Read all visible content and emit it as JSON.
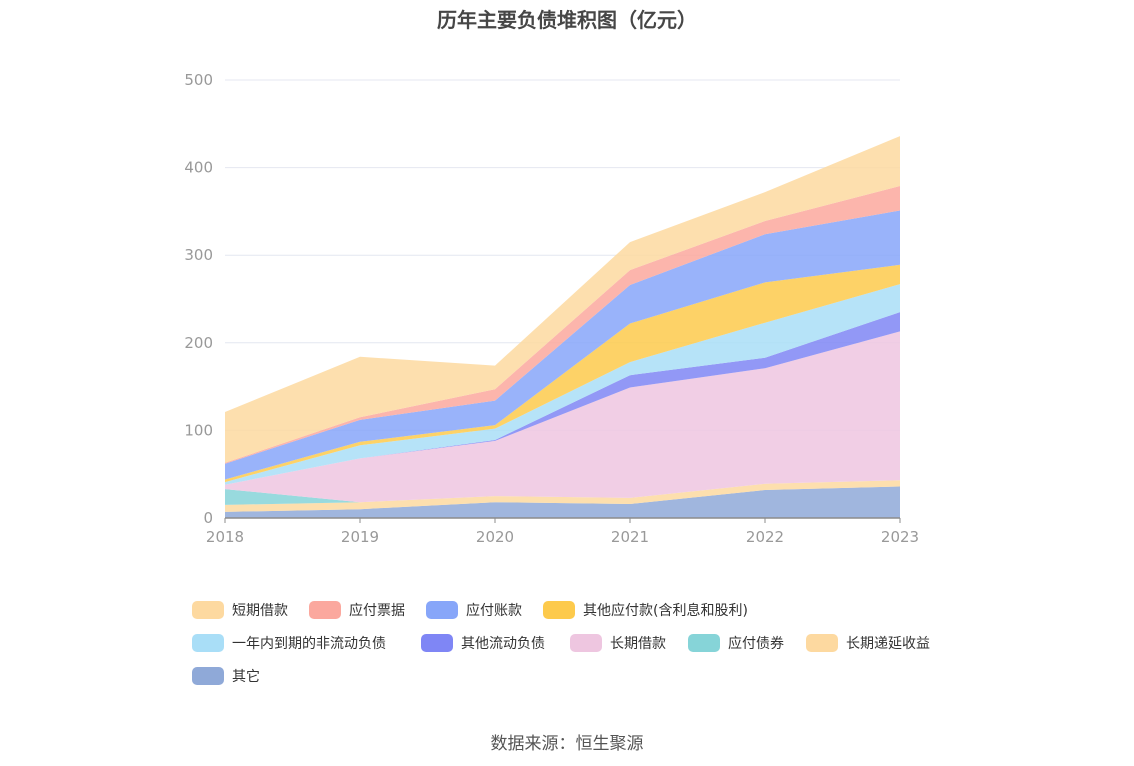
{
  "source": "数据来源：恒生聚源",
  "chart_data": {
    "type": "area",
    "stacked": true,
    "title": "历年主要负债堆积图（亿元）",
    "categories": [
      "2018",
      "2019",
      "2020",
      "2021",
      "2022",
      "2023"
    ],
    "ylim": [
      0,
      500
    ],
    "yticks": [
      "0",
      "100",
      "200",
      "300",
      "400",
      "500"
    ],
    "grid": true,
    "legend_position": "bottom",
    "series": [
      {
        "name": "其它",
        "color": "#8fa9d8",
        "values": [
          7,
          10,
          18,
          16,
          32,
          36
        ]
      },
      {
        "name": "长期递延收益",
        "color": "#fdd9a0",
        "values": [
          8,
          8,
          7,
          7,
          7,
          7
        ]
      },
      {
        "name": "应付债券",
        "color": "#86d4d8",
        "values": [
          18,
          0,
          0,
          0,
          0,
          0
        ]
      },
      {
        "name": "长期借款",
        "color": "#eec6e0",
        "values": [
          5,
          50,
          63,
          126,
          132,
          170
        ]
      },
      {
        "name": "其他流动负债",
        "color": "#7f86f5",
        "values": [
          0,
          0,
          1,
          14,
          12,
          22
        ]
      },
      {
        "name": "一年内到期的非流动负债",
        "color": "#a9def7",
        "values": [
          3,
          15,
          13,
          15,
          40,
          32
        ]
      },
      {
        "name": "其他应付款(含利息和股利)",
        "color": "#fdca4c",
        "values": [
          3,
          4,
          4,
          44,
          46,
          22
        ]
      },
      {
        "name": "应付账款",
        "color": "#87a6f9",
        "values": [
          18,
          25,
          28,
          44,
          55,
          62
        ]
      },
      {
        "name": "应付票据",
        "color": "#fba89e",
        "values": [
          1,
          3,
          13,
          17,
          15,
          28
        ]
      },
      {
        "name": "短期借款",
        "color": "#fdd9a0",
        "values": [
          58,
          69,
          27,
          32,
          33,
          57
        ]
      }
    ]
  },
  "legend": [
    {
      "label": "短期借款",
      "color": "#fdd9a0"
    },
    {
      "label": "应付票据",
      "color": "#fba89e"
    },
    {
      "label": "应付账款",
      "color": "#87a6f9"
    },
    {
      "label": "其他应付款(含利息和股利)",
      "color": "#fdca4c"
    },
    {
      "label": "一年内到期的非流动负债",
      "color": "#a9def7"
    },
    {
      "label": "其他流动负债",
      "color": "#7f86f5"
    },
    {
      "label": "长期借款",
      "color": "#eec6e0"
    },
    {
      "label": "应付债券",
      "color": "#86d4d8"
    },
    {
      "label": "长期递延收益",
      "color": "#fdd9a0"
    },
    {
      "label": "其它",
      "color": "#8fa9d8"
    }
  ]
}
